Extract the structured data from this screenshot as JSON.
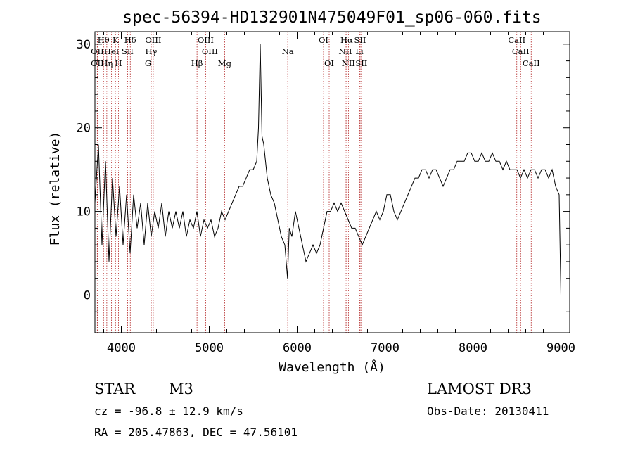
{
  "chart_data": {
    "type": "line",
    "title": "spec-56394-HD132901N475049F01_sp06-060.fits",
    "xlabel": "Wavelength (Å)",
    "ylabel": "Flux (relative)",
    "xlim": [
      3700,
      9100
    ],
    "ylim": [
      -4.5,
      31.5
    ],
    "xticks": [
      4000,
      5000,
      6000,
      7000,
      8000,
      9000
    ],
    "yticks": [
      0,
      10,
      20,
      30
    ],
    "xtick_labels": [
      "4000",
      "5000",
      "6000",
      "7000",
      "8000",
      "9000"
    ],
    "ytick_labels": [
      "0",
      "10",
      "20",
      "30"
    ],
    "grid": false,
    "series": [
      {
        "x": [
          3700,
          3740,
          3780,
          3820,
          3860,
          3900,
          3940,
          3980,
          4020,
          4060,
          4100,
          4140,
          4180,
          4220,
          4260,
          4300,
          4340,
          4380,
          4420,
          4460,
          4500,
          4540,
          4580,
          4620,
          4660,
          4700,
          4740,
          4780,
          4820,
          4860,
          4900,
          4940,
          4980,
          5020,
          5060,
          5100,
          5140,
          5180,
          5220,
          5260,
          5300,
          5340,
          5380,
          5420,
          5460,
          5500,
          5540,
          5560,
          5580,
          5600,
          5620,
          5660,
          5700,
          5740,
          5780,
          5820,
          5860,
          5890,
          5910,
          5940,
          5980,
          6020,
          6060,
          6100,
          6140,
          6180,
          6220,
          6260,
          6300,
          6340,
          6380,
          6420,
          6460,
          6500,
          6540,
          6580,
          6620,
          6660,
          6700,
          6740,
          6780,
          6820,
          6860,
          6900,
          6940,
          6980,
          7020,
          7060,
          7100,
          7140,
          7180,
          7220,
          7260,
          7300,
          7340,
          7380,
          7420,
          7460,
          7500,
          7540,
          7580,
          7620,
          7660,
          7700,
          7740,
          7780,
          7820,
          7860,
          7900,
          7940,
          7980,
          8020,
          8060,
          8100,
          8140,
          8180,
          8220,
          8260,
          8300,
          8340,
          8380,
          8420,
          8460,
          8500,
          8540,
          8580,
          8620,
          8660,
          8700,
          8740,
          8780,
          8820,
          8860,
          8900,
          8940,
          8980,
          9000
        ],
        "y": [
          11,
          18,
          6,
          16,
          4,
          14,
          7,
          13,
          6,
          12,
          5,
          12,
          8,
          11,
          6,
          11,
          7,
          10,
          8,
          11,
          7,
          10,
          8,
          10,
          8,
          10,
          7,
          9,
          8,
          10,
          7,
          9,
          8,
          9,
          7,
          8,
          10,
          9,
          10,
          11,
          12,
          13,
          13,
          14,
          15,
          15,
          16,
          20,
          30,
          19,
          18,
          14,
          12,
          11,
          9,
          7,
          6,
          2,
          8,
          7,
          10,
          8,
          6,
          4,
          5,
          6,
          5,
          6,
          8,
          10,
          10,
          11,
          10,
          11,
          10,
          9,
          8,
          8,
          7,
          6,
          7,
          8,
          9,
          10,
          9,
          10,
          12,
          12,
          10,
          9,
          10,
          11,
          12,
          13,
          14,
          14,
          15,
          15,
          14,
          15,
          15,
          14,
          13,
          14,
          15,
          15,
          16,
          16,
          16,
          17,
          17,
          16,
          16,
          17,
          16,
          16,
          17,
          16,
          16,
          15,
          16,
          15,
          15,
          15,
          14,
          15,
          14,
          15,
          15,
          14,
          15,
          15,
          14,
          15,
          13,
          12,
          0
        ]
      }
    ],
    "line_markers": [
      {
        "label": "Hθ",
        "x": 3798,
        "row": 1
      },
      {
        "label": "K",
        "x": 3934,
        "row": 1
      },
      {
        "label": "Hδ",
        "x": 4102,
        "row": 1
      },
      {
        "label": "OIII",
        "x": 4363,
        "row": 1
      },
      {
        "label": "OIII",
        "x": 4959,
        "row": 1
      },
      {
        "label": "OI",
        "x": 6300,
        "row": 1
      },
      {
        "label": "Hα",
        "x": 6563,
        "row": 1
      },
      {
        "label": "SII",
        "x": 6716,
        "row": 1
      },
      {
        "label": "CaII",
        "x": 8498,
        "row": 1
      },
      {
        "label": "OII",
        "x": 3727,
        "row": 2
      },
      {
        "label": "HeI",
        "x": 3889,
        "row": 2
      },
      {
        "label": "SII",
        "x": 4072,
        "row": 2
      },
      {
        "label": "Hγ",
        "x": 4340,
        "row": 2
      },
      {
        "label": "OIII",
        "x": 5007,
        "row": 2
      },
      {
        "label": "NII",
        "x": 6548,
        "row": 2
      },
      {
        "label": "Li",
        "x": 6708,
        "row": 2
      },
      {
        "label": "CaII",
        "x": 8542,
        "row": 2
      },
      {
        "label": "OII",
        "x": 3727,
        "row": 3
      },
      {
        "label": "Hη",
        "x": 3835,
        "row": 3
      },
      {
        "label": "H",
        "x": 3968,
        "row": 3
      },
      {
        "label": "G",
        "x": 4304,
        "row": 3
      },
      {
        "label": "Hβ",
        "x": 4861,
        "row": 3
      },
      {
        "label": "Mg",
        "x": 5175,
        "row": 3
      },
      {
        "label": "Na",
        "x": 5893,
        "row": 2
      },
      {
        "label": "OI",
        "x": 6364,
        "row": 3
      },
      {
        "label": "NII",
        "x": 6583,
        "row": 3
      },
      {
        "label": "SII",
        "x": 6731,
        "row": 3
      },
      {
        "label": "CaII",
        "x": 8662,
        "row": 3
      }
    ]
  },
  "info": {
    "object_class": "STAR",
    "subclass": "M3",
    "survey": "LAMOST DR3",
    "cz": "cz = -96.8 ± 12.9 km/s",
    "obs_date": "Obs-Date: 20130411",
    "coords": "RA = 205.47863, DEC =  47.56101"
  },
  "colors": {
    "spectrum": "#000000",
    "marker_lines": "#b22222",
    "frame": "#000000"
  }
}
